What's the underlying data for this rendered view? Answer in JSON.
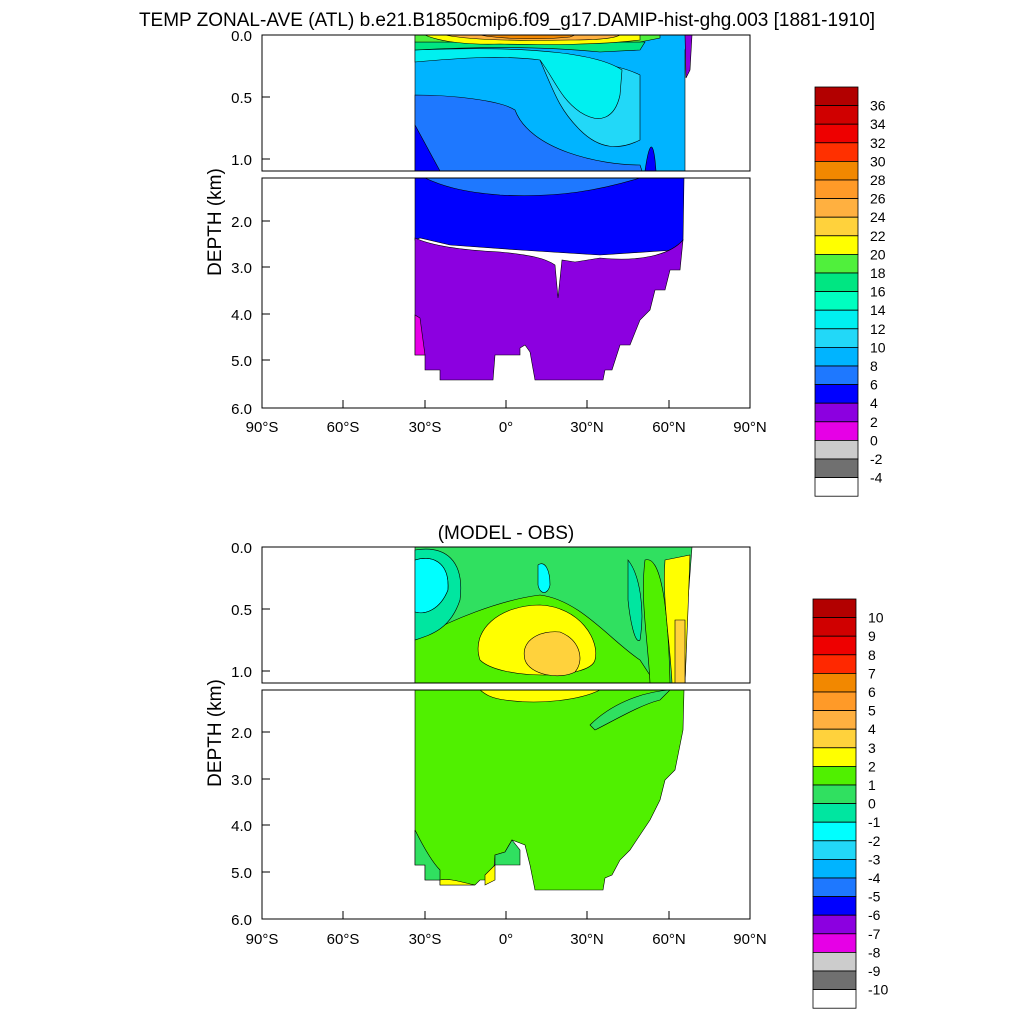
{
  "figure": {
    "title": "TEMP ZONAL-AVE (ATL) b.e21.B1850cmip6.f09_g17.DAMIP-hist-ghg.003 [1881-1910]"
  },
  "chart_data": [
    {
      "type": "heatmap",
      "title": "TEMP ZONAL-AVE (ATL) b.e21.B1850cmip6.f09_g17.DAMIP-hist-ghg.003 [1881-1910]",
      "ylabel": "DEPTH (km)",
      "xlabel": "",
      "x_ticks": [
        "90°S",
        "60°S",
        "30°S",
        "0°",
        "30°N",
        "60°N",
        "90°N"
      ],
      "xlim": [
        -90,
        90
      ],
      "upper_y_ticks": [
        "0.0",
        "0.5",
        "1.0"
      ],
      "upper_ylim": [
        0,
        1.15
      ],
      "lower_y_ticks": [
        "2.0",
        "3.0",
        "4.0",
        "5.0",
        "6.0"
      ],
      "lower_ylim": [
        1.15,
        6.0
      ],
      "data_lat_range": [
        -34,
        67
      ],
      "colorbar_labels": [
        "36",
        "34",
        "32",
        "30",
        "28",
        "26",
        "24",
        "22",
        "20",
        "18",
        "16",
        "14",
        "12",
        "10",
        "8",
        "6",
        "4",
        "2",
        "0",
        "-2",
        "-4"
      ],
      "colorbar_colors": [
        "#b20000",
        "#d00000",
        "#ee0000",
        "#ff3000",
        "#f28800",
        "#ff9a28",
        "#ffb040",
        "#ffd23c",
        "#ffff00",
        "#50f03c",
        "#00e682",
        "#00ffc0",
        "#00f0f0",
        "#22d8f8",
        "#00b4ff",
        "#1e78ff",
        "#0000ff",
        "#8c00e0",
        "#e600e6",
        "#cccccc",
        "#707070",
        "#ffffff"
      ]
    },
    {
      "type": "heatmap",
      "title": "(MODEL - OBS)",
      "ylabel": "DEPTH (km)",
      "xlabel": "",
      "x_ticks": [
        "90°S",
        "60°S",
        "30°S",
        "0°",
        "30°N",
        "60°N",
        "90°N"
      ],
      "xlim": [
        -90,
        90
      ],
      "upper_y_ticks": [
        "0.0",
        "0.5",
        "1.0"
      ],
      "upper_ylim": [
        0,
        1.15
      ],
      "lower_y_ticks": [
        "2.0",
        "3.0",
        "4.0",
        "5.0",
        "6.0"
      ],
      "lower_ylim": [
        1.15,
        6.0
      ],
      "data_lat_range": [
        -34,
        67
      ],
      "colorbar_labels": [
        "10",
        "9",
        "8",
        "7",
        "6",
        "5",
        "4",
        "3",
        "2",
        "1",
        "0",
        "-1",
        "-2",
        "-3",
        "-4",
        "-5",
        "-6",
        "-7",
        "-8",
        "-9",
        "-10"
      ],
      "colorbar_colors": [
        "#b20000",
        "#d00000",
        "#ee0000",
        "#ff2800",
        "#f28800",
        "#ff9a28",
        "#ffb040",
        "#ffd23c",
        "#ffff00",
        "#50f000",
        "#30e060",
        "#00e6a0",
        "#00ffff",
        "#22d8f8",
        "#00b4ff",
        "#1e78ff",
        "#0000ff",
        "#8c00e0",
        "#e600e6",
        "#cccccc",
        "#707070",
        "#ffffff"
      ]
    }
  ]
}
